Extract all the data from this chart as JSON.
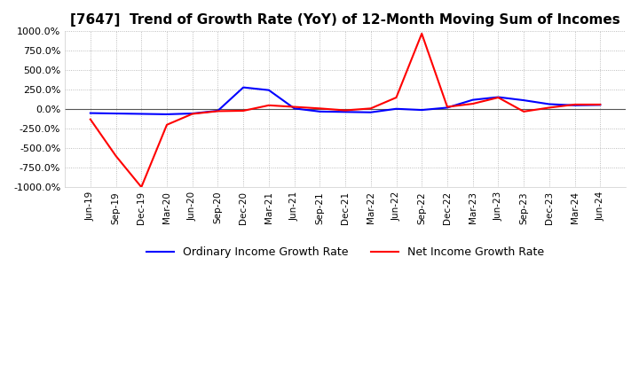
{
  "title": "[7647]  Trend of Growth Rate (YoY) of 12-Month Moving Sum of Incomes",
  "title_fontsize": 11,
  "ylim": [
    -1000,
    1000
  ],
  "yticks": [
    -1000,
    -750,
    -500,
    -250,
    0,
    250,
    500,
    750,
    1000
  ],
  "yticklabels": [
    "-1000.0%",
    "-750.0%",
    "-500.0%",
    "-250.0%",
    "0.0%",
    "250.0%",
    "500.0%",
    "750.0%",
    "1000.0%"
  ],
  "x_labels": [
    "Jun-19",
    "Sep-19",
    "Dec-19",
    "Mar-20",
    "Jun-20",
    "Sep-20",
    "Dec-20",
    "Mar-21",
    "Jun-21",
    "Sep-21",
    "Dec-21",
    "Mar-22",
    "Jun-22",
    "Sep-22",
    "Dec-22",
    "Mar-23",
    "Jun-23",
    "Sep-23",
    "Dec-23",
    "Mar-24",
    "Jun-24"
  ],
  "ordinary_income": [
    -50,
    -55,
    -60,
    -65,
    -55,
    -20,
    280,
    245,
    10,
    -30,
    -35,
    -40,
    5,
    -10,
    20,
    120,
    155,
    115,
    65,
    50,
    55
  ],
  "net_income": [
    -130,
    -600,
    -1000,
    -200,
    -60,
    -25,
    -20,
    50,
    30,
    10,
    -15,
    10,
    150,
    970,
    30,
    70,
    150,
    -30,
    20,
    60,
    60
  ],
  "ordinary_color": "#0000ff",
  "net_color": "#ff0000",
  "line_width": 1.5,
  "legend_labels": [
    "Ordinary Income Growth Rate",
    "Net Income Growth Rate"
  ],
  "background_color": "#ffffff",
  "grid_color": "#aaaaaa",
  "plot_bg_color": "#ffffff",
  "zero_line_color": "#555555"
}
